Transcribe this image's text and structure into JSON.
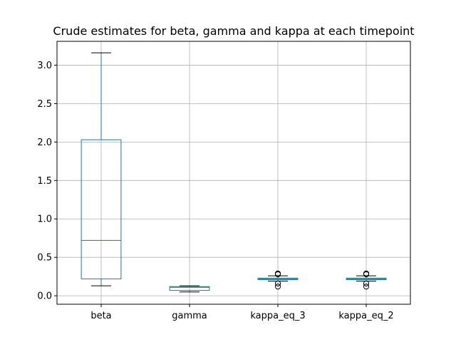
{
  "chart_data": {
    "type": "boxplot",
    "title": "Crude estimates for beta, gamma and kappa at each timepoint",
    "xlabel": "",
    "ylabel": "",
    "ylim": [
      -0.11,
      3.31
    ],
    "y_ticks": [
      0.0,
      0.5,
      1.0,
      1.5,
      2.0,
      2.5,
      3.0
    ],
    "y_tick_labels": [
      "0.0",
      "0.5",
      "1.0",
      "1.5",
      "2.0",
      "2.5",
      "3.0"
    ],
    "grid": true,
    "categories": [
      "beta",
      "gamma",
      "kappa_eq_3",
      "kappa_eq_2"
    ],
    "boxes": [
      {
        "label": "beta",
        "whisker_low": 0.13,
        "q1": 0.22,
        "median": 0.72,
        "q3": 2.03,
        "whisker_high": 3.16,
        "outliers": []
      },
      {
        "label": "gamma",
        "whisker_low": 0.05,
        "q1": 0.07,
        "median": 0.11,
        "q3": 0.12,
        "whisker_high": 0.13,
        "outliers": []
      },
      {
        "label": "kappa_eq_3",
        "whisker_low": 0.19,
        "q1": 0.21,
        "median": 0.22,
        "q3": 0.23,
        "whisker_high": 0.26,
        "outliers": [
          0.12,
          0.16,
          0.28,
          0.29
        ]
      },
      {
        "label": "kappa_eq_2",
        "whisker_low": 0.19,
        "q1": 0.21,
        "median": 0.22,
        "q3": 0.23,
        "whisker_high": 0.26,
        "outliers": [
          0.12,
          0.16,
          0.28,
          0.29
        ]
      }
    ],
    "colors": {
      "box": "#1f77b4",
      "median": "#2ca02c",
      "whisker": "#1f77b4",
      "cap": "#000000",
      "outlier": "#000000",
      "grid": "#b0b0b0",
      "axes": "#000000"
    }
  }
}
